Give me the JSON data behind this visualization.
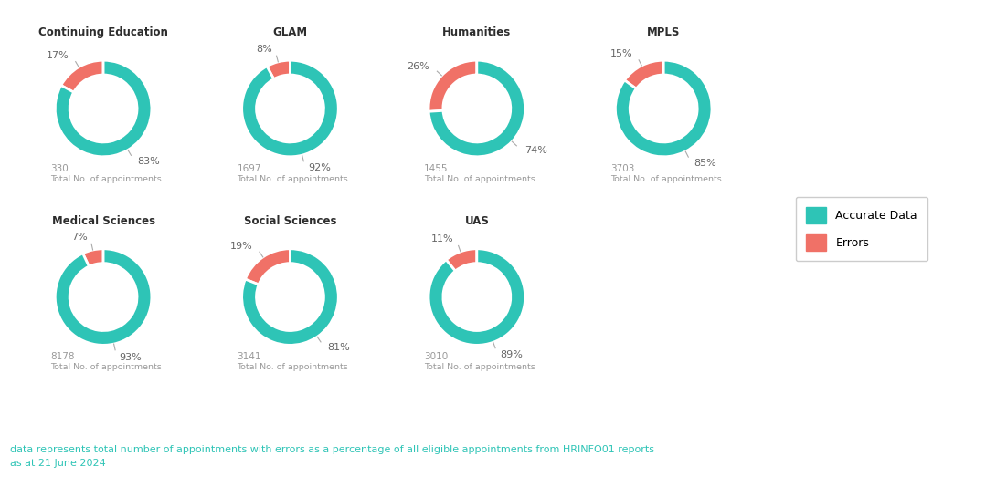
{
  "charts": [
    {
      "title": "Continuing Education",
      "accurate": 83,
      "errors": 17,
      "total": "330",
      "row": 0,
      "col": 0
    },
    {
      "title": "GLAM",
      "accurate": 92,
      "errors": 8,
      "total": "1697",
      "row": 0,
      "col": 1
    },
    {
      "title": "Humanities",
      "accurate": 74,
      "errors": 26,
      "total": "1455",
      "row": 0,
      "col": 2
    },
    {
      "title": "MPLS",
      "accurate": 85,
      "errors": 15,
      "total": "3703",
      "row": 0,
      "col": 3
    },
    {
      "title": "Medical Sciences",
      "accurate": 93,
      "errors": 7,
      "total": "8178",
      "row": 1,
      "col": 0
    },
    {
      "title": "Social Sciences",
      "accurate": 81,
      "errors": 19,
      "total": "3141",
      "row": 1,
      "col": 1
    },
    {
      "title": "UAS",
      "accurate": 89,
      "errors": 11,
      "total": "3010",
      "row": 1,
      "col": 2
    }
  ],
  "color_accurate": "#2ec4b6",
  "color_errors": "#f07167",
  "color_title": "#2d2d2d",
  "color_label": "#999999",
  "color_pct": "#666666",
  "background_color": "#ffffff",
  "legend_accurate": "Accurate Data",
  "legend_errors": "Errors",
  "footnote_line1": "data represents total number of appointments with errors as a percentage of all eligible appointments from HRINFO01 reports",
  "footnote_line2": "as at 21 June 2024",
  "footnote_color": "#2ec4b6",
  "donut_width": 0.3
}
